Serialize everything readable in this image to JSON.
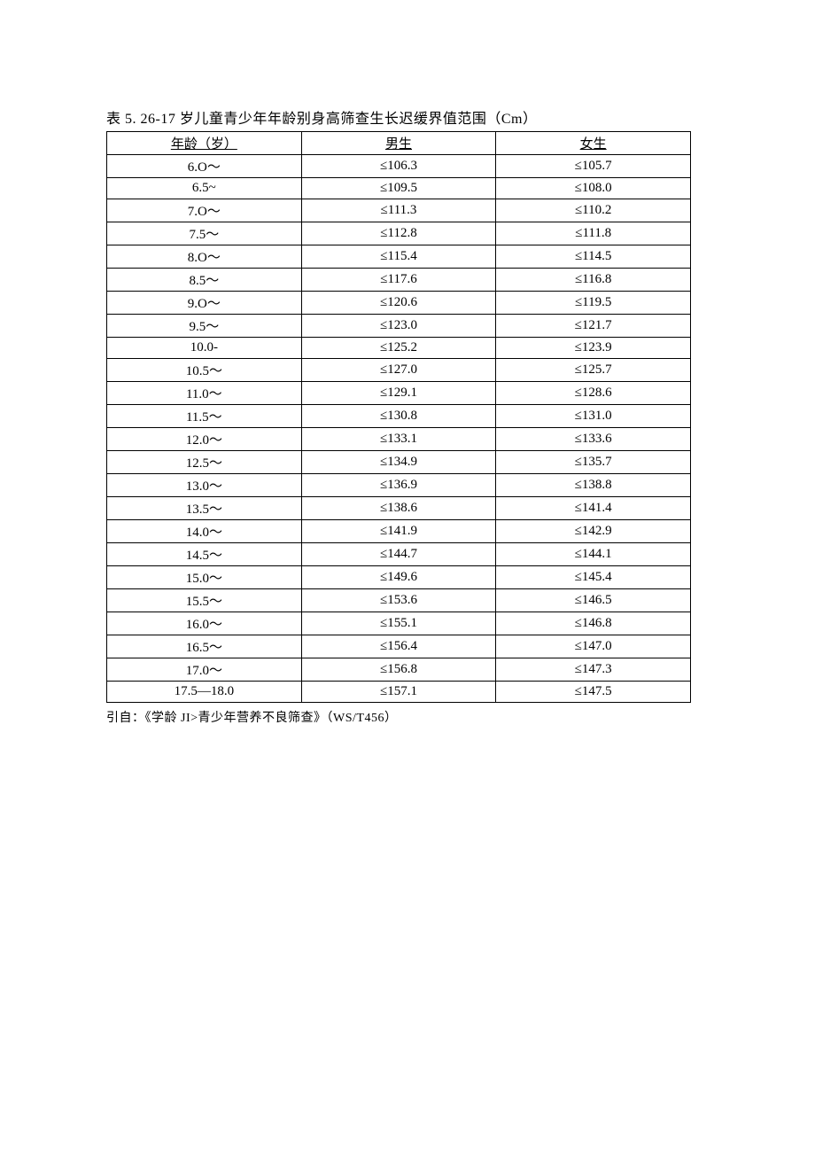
{
  "title": "表 5. 26-17 岁儿童青少年年龄别身高筛查生长迟缓界值范围（Cm）",
  "footnote": "引自：《学龄 JI>青少年营养不良筛查》（WS/T456）",
  "table": {
    "columns": [
      "年龄（岁）",
      "男生",
      "女生"
    ],
    "rows": [
      [
        "6.O～",
        "≤106.3",
        "≤105.7"
      ],
      [
        "6.5~",
        "≤109.5",
        "≤108.0"
      ],
      [
        "7.O～",
        "≤111.3",
        "≤110.2"
      ],
      [
        "7.5～",
        "≤112.8",
        "≤111.8"
      ],
      [
        "8.O～",
        "≤115.4",
        "≤114.5"
      ],
      [
        "8.5～",
        "≤117.6",
        "≤116.8"
      ],
      [
        "9.O～",
        "≤120.6",
        "≤119.5"
      ],
      [
        "9.5～",
        "≤123.0",
        "≤121.7"
      ],
      [
        "10.0-",
        "≤125.2",
        "≤123.9"
      ],
      [
        "10.5～",
        "≤127.0",
        "≤125.7"
      ],
      [
        "11.0～",
        "≤129.1",
        "≤128.6"
      ],
      [
        "11.5～",
        "≤130.8",
        "≤131.0"
      ],
      [
        "12.0～",
        "≤133.1",
        "≤133.6"
      ],
      [
        "12.5～",
        "≤134.9",
        "≤135.7"
      ],
      [
        "13.0～",
        "≤136.9",
        "≤138.8"
      ],
      [
        "13.5～",
        "≤138.6",
        "≤141.4"
      ],
      [
        "14.0～",
        "≤141.9",
        "≤142.9"
      ],
      [
        "14.5～",
        "≤144.7",
        "≤144.1"
      ],
      [
        "15.0～",
        "≤149.6",
        "≤145.4"
      ],
      [
        "15.5～",
        "≤153.6",
        "≤146.5"
      ],
      [
        "16.0～",
        "≤155.1",
        "≤146.8"
      ],
      [
        "16.5～",
        "≤156.4",
        "≤147.0"
      ],
      [
        "17.0～",
        "≤156.8",
        "≤147.3"
      ],
      [
        "17.5—18.0",
        "≤157.1",
        "≤147.5"
      ]
    ]
  }
}
